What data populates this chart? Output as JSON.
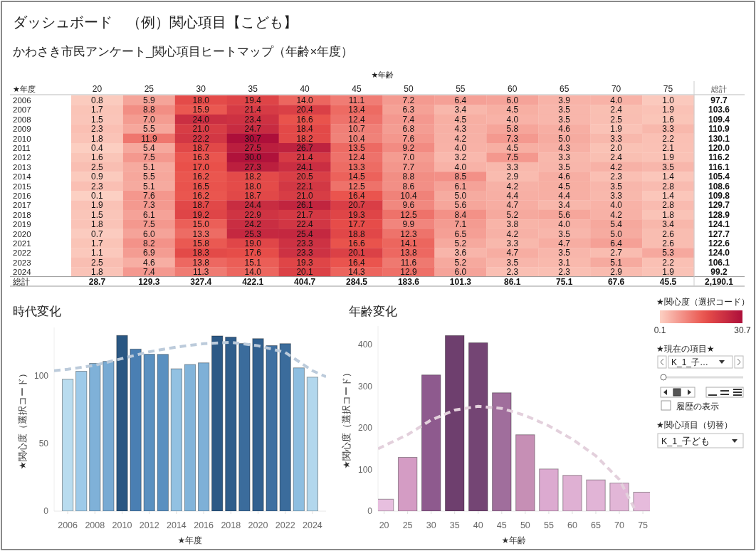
{
  "chart_data": [
    {
      "type": "heatmap",
      "title": "ダッシュボード　（例）関心項目【こども】",
      "subtitle": "かわさき市民アンケート_関心項目ヒートマップ（年齢×年度）",
      "xlabel": "★年齢",
      "ylabel": "★年度",
      "clabel": "★関心度（選択コード）",
      "clim": [
        0.1,
        30.7
      ],
      "cticks": [
        0.1,
        30.7
      ],
      "annotations": [
        "総計"
      ],
      "categories": [
        "20",
        "25",
        "30",
        "35",
        "40",
        "45",
        "50",
        "55",
        "60",
        "65",
        "70",
        "75"
      ],
      "y_categories": [
        "2006",
        "2007",
        "2008",
        "2009",
        "2010",
        "2011",
        "2012",
        "2013",
        "2014",
        "2015",
        "2016",
        "2017",
        "2018",
        "2019",
        "2020",
        "2021",
        "2022",
        "2023",
        "2024",
        "総計"
      ],
      "y2_categories": [
        "97.7",
        "103.6",
        "109.4",
        "110.9",
        "130.1",
        "120.0",
        "116.2",
        "116.1",
        "105.4",
        "108.6",
        "109.8",
        "129.7",
        "128.9",
        "124.1",
        "127.7",
        "122.6",
        "124.0",
        "106.1",
        "99.2",
        "2,190.1"
      ],
      "cells": [
        [
          0.8,
          5.9,
          18.0,
          19.4,
          14.0,
          11.1,
          7.2,
          6.4,
          6.0,
          3.9,
          4.0,
          1.0
        ],
        [
          1.7,
          8.8,
          15.9,
          21.4,
          20.4,
          13.4,
          6.3,
          3.4,
          4.5,
          3.5,
          2.4,
          1.9
        ],
        [
          1.5,
          7.0,
          24.0,
          23.4,
          16.6,
          12.4,
          7.4,
          4.5,
          4.0,
          3.5,
          2.5,
          1.6
        ],
        [
          2.3,
          5.5,
          21.0,
          24.7,
          18.4,
          10.7,
          6.8,
          4.3,
          5.8,
          4.6,
          1.9,
          3.3
        ],
        [
          1.8,
          11.9,
          22.2,
          30.7,
          18.2,
          10.4,
          7.6,
          4.2,
          7.3,
          5.0,
          3.3,
          2.2
        ],
        [
          0.4,
          5.4,
          18.7,
          27.5,
          26.7,
          13.5,
          9.2,
          4.0,
          4.5,
          4.3,
          2.0,
          2.1
        ],
        [
          1.6,
          7.5,
          16.3,
          30.0,
          21.4,
          12.4,
          7.0,
          3.2,
          7.5,
          3.3,
          2.4,
          1.9
        ],
        [
          2.5,
          5.1,
          17.0,
          27.3,
          24.1,
          13.3,
          7.7,
          4.0,
          3.3,
          3.5,
          4.2,
          3.5
        ],
        [
          0.9,
          5.5,
          16.2,
          18.2,
          20.5,
          14.5,
          8.8,
          8.5,
          2.9,
          4.6,
          2.3,
          1.4
        ],
        [
          2.3,
          5.1,
          16.5,
          18.0,
          22.1,
          12.5,
          8.6,
          6.1,
          4.2,
          4.5,
          3.5,
          2.8
        ],
        [
          0.1,
          7.6,
          16.2,
          18.7,
          21.0,
          16.4,
          10.4,
          5.0,
          4.4,
          4.4,
          3.3,
          1.4
        ],
        [
          1.9,
          7.3,
          18.7,
          24.4,
          26.1,
          20.7,
          9.6,
          5.6,
          4.7,
          3.4,
          4.0,
          2.8
        ],
        [
          1.5,
          6.1,
          19.2,
          22.9,
          21.7,
          19.3,
          12.5,
          8.4,
          5.2,
          5.6,
          4.2,
          1.8
        ],
        [
          1.8,
          7.5,
          15.0,
          24.2,
          22.4,
          17.7,
          9.9,
          7.1,
          3.8,
          4.0,
          5.4,
          3.4
        ],
        [
          0.7,
          6.0,
          13.3,
          25.3,
          25.4,
          18.8,
          12.3,
          6.5,
          4.2,
          3.5,
          5.0,
          2.6
        ],
        [
          1.7,
          8.2,
          15.8,
          19.0,
          23.3,
          16.6,
          14.1,
          5.2,
          3.3,
          4.7,
          6.4,
          2.6
        ],
        [
          1.1,
          6.9,
          18.3,
          17.6,
          23.3,
          20.1,
          13.8,
          3.6,
          4.7,
          3.5,
          2.7,
          5.3
        ],
        [
          2.5,
          4.6,
          13.8,
          15.1,
          19.3,
          16.4,
          11.6,
          5.2,
          3.5,
          3.1,
          5.1,
          2.2
        ],
        [
          1.8,
          7.4,
          11.3,
          14.0,
          20.1,
          14.3,
          12.9,
          6.0,
          2.3,
          2.3,
          2.9,
          1.9
        ],
        [
          null,
          null,
          null,
          null,
          null,
          null,
          null,
          null,
          null,
          null,
          null,
          null
        ]
      ],
      "cell_labels": [
        [
          "0.8",
          "5.9",
          "18.0",
          "19.4",
          "14.0",
          "11.1",
          "7.2",
          "6.4",
          "6.0",
          "3.9",
          "4.0",
          "1.0"
        ],
        [
          "1.7",
          "8.8",
          "15.9",
          "21.4",
          "20.4",
          "13.4",
          "6.3",
          "3.4",
          "4.5",
          "3.5",
          "2.4",
          "1.9"
        ],
        [
          "1.5",
          "7.0",
          "24.0",
          "23.4",
          "16.6",
          "12.4",
          "7.4",
          "4.5",
          "4.0",
          "3.5",
          "2.5",
          "1.6"
        ],
        [
          "2.3",
          "5.5",
          "21.0",
          "24.7",
          "18.4",
          "10.7",
          "6.8",
          "4.3",
          "5.8",
          "4.6",
          "1.9",
          "3.3"
        ],
        [
          "1.8",
          "11.9",
          "22.2",
          "30.7",
          "18.2",
          "10.4",
          "7.6",
          "4.2",
          "7.3",
          "5.0",
          "3.3",
          "2.2"
        ],
        [
          "0.4",
          "5.4",
          "18.7",
          "27.5",
          "26.7",
          "13.5",
          "9.2",
          "4.0",
          "4.5",
          "4.3",
          "2.0",
          "2.1"
        ],
        [
          "1.6",
          "7.5",
          "16.3",
          "30.0",
          "21.4",
          "12.4",
          "7.0",
          "3.2",
          "7.5",
          "3.3",
          "2.4",
          "1.9"
        ],
        [
          "2.5",
          "5.1",
          "17.0",
          "27.3",
          "24.1",
          "13.3",
          "7.7",
          "4.0",
          "3.3",
          "3.5",
          "4.2",
          "3.5"
        ],
        [
          "0.9",
          "5.5",
          "16.2",
          "18.2",
          "20.5",
          "14.5",
          "8.8",
          "8.5",
          "2.9",
          "4.6",
          "2.3",
          "1.4"
        ],
        [
          "2.3",
          "5.1",
          "16.5",
          "18.0",
          "22.1",
          "12.5",
          "8.6",
          "6.1",
          "4.2",
          "4.5",
          "3.5",
          "2.8"
        ],
        [
          "0.1",
          "7.6",
          "16.2",
          "18.7",
          "21.0",
          "16.4",
          "10.4",
          "5.0",
          "4.4",
          "4.4",
          "3.3",
          "1.4"
        ],
        [
          "1.9",
          "7.3",
          "18.7",
          "24.4",
          "26.1",
          "20.7",
          "9.6",
          "5.6",
          "4.7",
          "3.4",
          "4.0",
          "2.8"
        ],
        [
          "1.5",
          "6.1",
          "19.2",
          "22.9",
          "21.7",
          "19.3",
          "12.5",
          "8.4",
          "5.2",
          "5.6",
          "4.2",
          "1.8"
        ],
        [
          "1.8",
          "7.5",
          "15.0",
          "24.2",
          "22.4",
          "17.7",
          "9.9",
          "7.1",
          "3.8",
          "4.0",
          "5.4",
          "3.4"
        ],
        [
          "0.7",
          "6.0",
          "13.3",
          "25.3",
          "25.4",
          "18.8",
          "12.3",
          "6.5",
          "4.2",
          "3.5",
          "5.0",
          "2.6"
        ],
        [
          "1.7",
          "8.2",
          "15.8",
          "19.0",
          "23.3",
          "16.6",
          "14.1",
          "5.2",
          "3.3",
          "4.7",
          "6.4",
          "2.6"
        ],
        [
          "1.1",
          "6.9",
          "18.3",
          "17.6",
          "23.3",
          "20.1",
          "13.8",
          "3.6",
          "4.7",
          "3.5",
          "2.7",
          "5.3"
        ],
        [
          "2.5",
          "4.6",
          "13.8",
          "15.1",
          "19.3",
          "16.4",
          "11.6",
          "5.2",
          "3.5",
          "3.1",
          "5.1",
          "2.2"
        ],
        [
          "1.8",
          "7.4",
          "11.3",
          "14.0",
          "20.1",
          "14.3",
          "12.9",
          "6.0",
          "2.3",
          "2.3",
          "2.9",
          "1.9"
        ],
        [
          "28.7",
          "129.3",
          "327.4",
          "422.1",
          "404.7",
          "284.5",
          "183.6",
          "101.3",
          "86.1",
          "75.1",
          "67.6",
          "45.5"
        ]
      ]
    },
    {
      "type": "bar",
      "title": "時代変化",
      "xlabel": "★年度",
      "ylabel": "★関心度（選択コード）",
      "x": [
        2006,
        2007,
        2008,
        2009,
        2010,
        2011,
        2012,
        2013,
        2014,
        2015,
        2016,
        2017,
        2018,
        2019,
        2020,
        2021,
        2022,
        2023,
        2024
      ],
      "xlim": [
        2005,
        2025
      ],
      "xticks": [
        2006,
        2008,
        2010,
        2012,
        2014,
        2016,
        2018,
        2020,
        2022,
        2024
      ],
      "ylim": [
        0,
        136
      ],
      "yticks": [
        0,
        50,
        100
      ],
      "series": [
        {
          "type": "bar",
          "values": [
            97.7,
            103.6,
            109.4,
            110.9,
            130.1,
            120.0,
            116.2,
            116.1,
            105.4,
            108.6,
            109.8,
            129.7,
            128.9,
            124.1,
            127.7,
            122.6,
            124.0,
            106.1,
            99.2
          ],
          "colors": [
            "#b9dcef",
            "#9ecae9",
            "#7fb1d8",
            "#78aad3",
            "#2a5783",
            "#4a7fb3",
            "#5a90c0",
            "#5a90c0",
            "#92c1e2",
            "#82b4da",
            "#7eb0d7",
            "#2c5986",
            "#2f5d8b",
            "#3b6c9c",
            "#326190",
            "#3f70a1",
            "#3b6c9c",
            "#8ebee0",
            "#b2d7ed"
          ]
        },
        {
          "type": "line",
          "x": [
            2005,
            2006,
            2008,
            2010,
            2012,
            2014,
            2016,
            2018,
            2020,
            2022,
            2024,
            2025
          ],
          "values": [
            104,
            105,
            108,
            113,
            118,
            121.5,
            124,
            125,
            122.5,
            117.5,
            104,
            99.5
          ],
          "color": "#bccbdb",
          "line_style": "dashed"
        }
      ]
    },
    {
      "type": "bar",
      "title": "年齢変化",
      "xlabel": "★年齢",
      "ylabel": "★関心度（選択コード）",
      "x": [
        20,
        25,
        30,
        35,
        40,
        45,
        50,
        55,
        60,
        65,
        70,
        75
      ],
      "xlim": [
        18.7,
        76.5
      ],
      "xticks": [
        20,
        25,
        30,
        35,
        40,
        45,
        50,
        55,
        60,
        65,
        70,
        75
      ],
      "ylim": [
        0,
        445
      ],
      "yticks": [
        0,
        100,
        200,
        300,
        400
      ],
      "series": [
        {
          "type": "bar",
          "values": [
            28.7,
            129.3,
            327.4,
            422.1,
            404.7,
            284.5,
            183.6,
            101.3,
            86.1,
            75.1,
            67.6,
            45.5
          ],
          "colors": [
            "#e7bfdf",
            "#d49cc4",
            "#8e5a8e",
            "#6e3f6e",
            "#744574",
            "#a06e9c",
            "#c68fb5",
            "#dcaad0",
            "#dfb0d3",
            "#e1b4d6",
            "#e2b6d7",
            "#e6bbdc"
          ]
        },
        {
          "type": "line",
          "x": [
            18.7,
            25,
            30,
            35,
            40,
            45,
            50,
            55,
            60,
            65,
            70,
            73.5
          ],
          "values": [
            150,
            184,
            219,
            243,
            252,
            247,
            230,
            205,
            173,
            133,
            76,
            0
          ],
          "color": "#e3d0dc",
          "line_style": "dashed"
        }
      ]
    },
    {
      "type": "other",
      "annotations": [
        "★現在の項目★",
        "K_1_子…",
        "履歴の表示",
        "★関心項目（切替）",
        "K_1_子ども"
      ]
    }
  ]
}
